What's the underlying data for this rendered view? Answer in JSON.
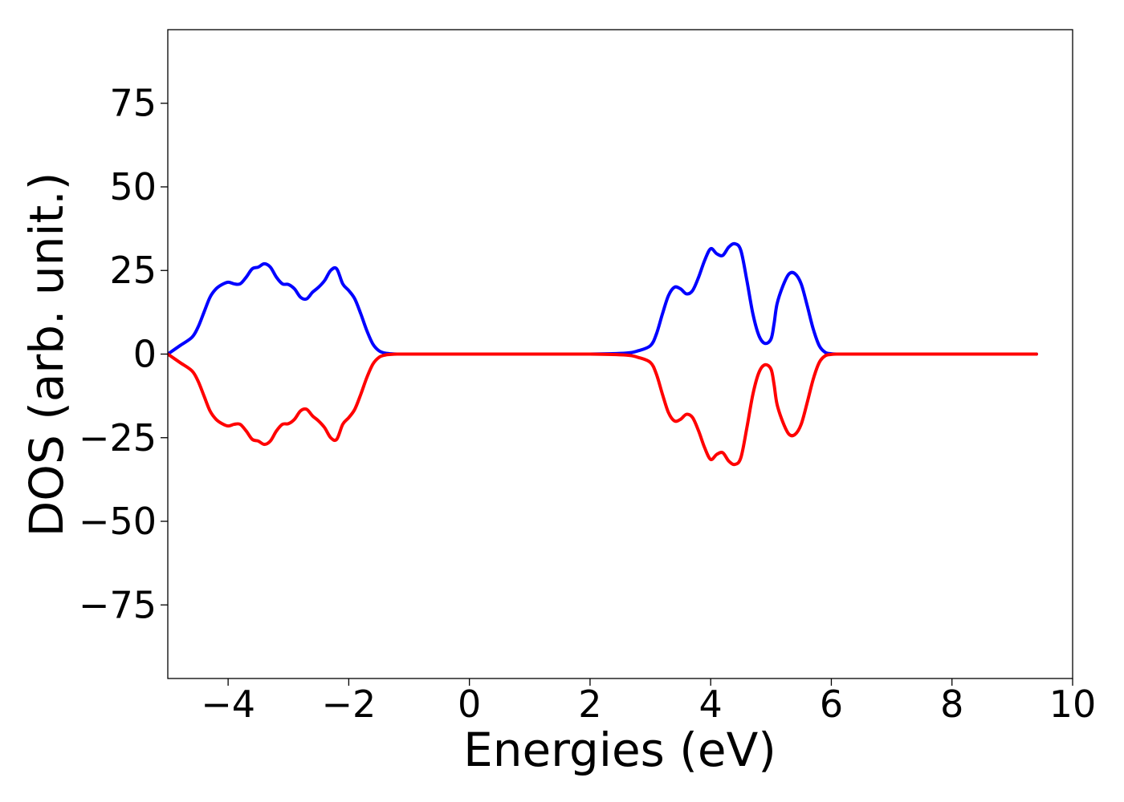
{
  "chart_data": {
    "type": "line",
    "title": "",
    "xlabel": "Energies (eV)",
    "ylabel": "DOS (arb. unit.)",
    "xlim": [
      -5,
      10
    ],
    "ylim": [
      -97,
      97
    ],
    "xticks": [
      -4,
      -2,
      0,
      2,
      4,
      6,
      8,
      10
    ],
    "xtick_labels": [
      "−4",
      "−2",
      "0",
      "2",
      "4",
      "6",
      "8",
      "10"
    ],
    "yticks": [
      75,
      50,
      25,
      0,
      -25,
      -50,
      -75
    ],
    "ytick_labels": [
      "75",
      "50",
      "25",
      "0",
      "−25",
      "−50",
      "−75"
    ],
    "grid": false,
    "legend": "none",
    "series": [
      {
        "color": "#0000ff",
        "x": [
          -5.0,
          -4.8,
          -4.6,
          -4.5,
          -4.4,
          -4.3,
          -4.2,
          -4.1,
          -4.0,
          -3.9,
          -3.8,
          -3.7,
          -3.6,
          -3.5,
          -3.4,
          -3.3,
          -3.2,
          -3.1,
          -3.0,
          -2.9,
          -2.8,
          -2.7,
          -2.6,
          -2.5,
          -2.4,
          -2.3,
          -2.2,
          -2.1,
          -2.0,
          -1.9,
          -1.8,
          -1.7,
          -1.6,
          -1.5,
          -1.4,
          -1.3,
          -1.2,
          -1.1,
          -1.0,
          -0.9,
          -0.8,
          -0.7,
          -0.6,
          -0.5,
          0.0,
          1.0,
          2.0,
          2.6,
          2.8,
          3.0,
          3.1,
          3.2,
          3.3,
          3.4,
          3.5,
          3.6,
          3.7,
          3.8,
          3.9,
          4.0,
          4.1,
          4.2,
          4.3,
          4.4,
          4.5,
          4.6,
          4.7,
          4.8,
          4.9,
          5.0,
          5.05,
          5.1,
          5.2,
          5.3,
          5.4,
          5.5,
          5.6,
          5.7,
          5.8,
          5.9,
          6.0,
          6.1,
          6.2,
          6.25,
          6.3,
          6.4,
          6.5,
          6.6,
          6.7,
          6.8,
          6.9,
          7.0,
          7.5,
          8.0,
          8.5,
          9.0,
          9.4
        ],
        "y": [
          0.0,
          2.5,
          5.0,
          8.0,
          12.5,
          17.0,
          19.5,
          20.8,
          21.5,
          21.0,
          21.0,
          23.0,
          25.5,
          26.0,
          27.0,
          26.0,
          23.0,
          21.0,
          20.8,
          19.5,
          17.0,
          16.5,
          18.5,
          20.0,
          22.0,
          25.0,
          25.5,
          21.0,
          19.0,
          16.5,
          12.0,
          7.0,
          3.0,
          1.0,
          0.3,
          0.1,
          0.0,
          0.0,
          0.0,
          0.0,
          0.0,
          0.0,
          0.0,
          0.0,
          0.0,
          0.0,
          0.0,
          0.3,
          1.0,
          2.5,
          6.0,
          12.0,
          17.5,
          20.0,
          19.5,
          18.0,
          19.0,
          23.0,
          28.0,
          31.5,
          30.0,
          29.5,
          32.0,
          33.0,
          31.0,
          22.0,
          12.0,
          5.5,
          3.2,
          4.5,
          9.0,
          15.0,
          20.5,
          24.0,
          24.0,
          21.0,
          14.5,
          7.5,
          2.5,
          0.5,
          0.1,
          0.0,
          0.0,
          0.0,
          0.0,
          0.0,
          0.0,
          0.0,
          0.0,
          0.0,
          0.0,
          0.0,
          0.0,
          0.0,
          0.0,
          0.0,
          0.0
        ]
      },
      {
        "color": "#ff0000",
        "x": [
          -5.0,
          -4.8,
          -4.6,
          -4.5,
          -4.4,
          -4.3,
          -4.2,
          -4.1,
          -4.0,
          -3.9,
          -3.8,
          -3.7,
          -3.6,
          -3.5,
          -3.4,
          -3.3,
          -3.2,
          -3.1,
          -3.0,
          -2.9,
          -2.8,
          -2.7,
          -2.6,
          -2.5,
          -2.4,
          -2.3,
          -2.2,
          -2.1,
          -2.0,
          -1.9,
          -1.8,
          -1.7,
          -1.6,
          -1.5,
          -1.4,
          -1.3,
          -1.2,
          -1.1,
          -1.0,
          -0.9,
          -0.8,
          -0.7,
          -0.6,
          -0.5,
          0.0,
          1.0,
          2.0,
          2.6,
          2.8,
          3.0,
          3.1,
          3.2,
          3.3,
          3.4,
          3.5,
          3.6,
          3.7,
          3.8,
          3.9,
          4.0,
          4.1,
          4.2,
          4.3,
          4.4,
          4.5,
          4.6,
          4.7,
          4.8,
          4.9,
          5.0,
          5.05,
          5.1,
          5.2,
          5.3,
          5.4,
          5.5,
          5.6,
          5.7,
          5.8,
          5.9,
          6.0,
          6.1,
          6.2,
          6.25,
          6.3,
          6.4,
          6.5,
          6.6,
          6.7,
          6.8,
          6.9,
          7.0,
          7.5,
          8.0,
          8.5,
          9.0,
          9.4
        ],
        "y": [
          0.0,
          -2.5,
          -5.0,
          -8.0,
          -12.5,
          -17.0,
          -19.5,
          -20.8,
          -21.5,
          -21.0,
          -21.0,
          -23.0,
          -25.5,
          -26.0,
          -27.0,
          -26.0,
          -23.0,
          -21.0,
          -20.8,
          -19.5,
          -17.0,
          -16.5,
          -18.5,
          -20.0,
          -22.0,
          -25.0,
          -25.5,
          -21.0,
          -19.0,
          -16.5,
          -12.0,
          -7.0,
          -3.0,
          -1.0,
          -0.3,
          -0.1,
          0.0,
          0.0,
          0.0,
          0.0,
          0.0,
          0.0,
          0.0,
          0.0,
          0.0,
          0.0,
          0.0,
          -0.3,
          -1.0,
          -2.5,
          -6.0,
          -12.0,
          -17.5,
          -20.0,
          -19.5,
          -18.0,
          -19.0,
          -23.0,
          -28.0,
          -31.5,
          -30.0,
          -29.5,
          -32.0,
          -33.0,
          -31.0,
          -22.0,
          -12.0,
          -5.5,
          -3.2,
          -4.5,
          -9.0,
          -15.0,
          -20.5,
          -24.0,
          -24.0,
          -21.0,
          -14.5,
          -7.5,
          -2.5,
          -0.5,
          -0.1,
          0.0,
          0.0,
          0.0,
          0.0,
          0.0,
          0.0,
          0.0,
          0.0,
          0.0,
          0.0,
          0.0,
          0.0,
          0.0,
          0.0,
          0.0,
          0.0
        ]
      }
    ]
  }
}
